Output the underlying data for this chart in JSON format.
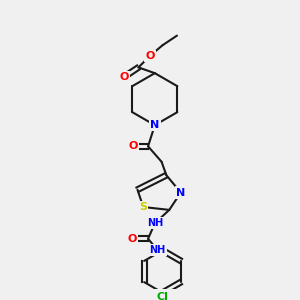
{
  "background_color": "#f0f0f0",
  "bond_color": "#1a1a1a",
  "atom_colors": {
    "N": "#0000ff",
    "O": "#ff0000",
    "S": "#cccc00",
    "Cl": "#00aa00",
    "C": "#1a1a1a"
  },
  "figsize": [
    3.0,
    3.0
  ],
  "dpi": 100
}
